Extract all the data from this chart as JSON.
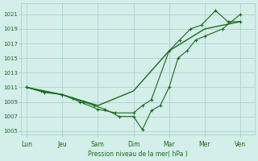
{
  "xlabel": "Pression niveau de la mer( hPa )",
  "ylim": [
    1004.5,
    1022.5
  ],
  "yticks": [
    1005,
    1007,
    1009,
    1011,
    1013,
    1015,
    1017,
    1019,
    1021
  ],
  "x_labels": [
    "Lun",
    "Jeu",
    "Sam",
    "Dim",
    "Mar",
    "Mer",
    "Ven"
  ],
  "x_positions": [
    0,
    1,
    2,
    3,
    4,
    5,
    6
  ],
  "xlim": [
    -0.15,
    6.4
  ],
  "line_color": "#1a6b1a",
  "background_color": "#d4eeea",
  "grid_color": "#a8ccc8",
  "line1_x": [
    0,
    0.4,
    1.0,
    1.3,
    1.6,
    1.9,
    2.2,
    2.6,
    3.0,
    3.25,
    3.5,
    3.75,
    4.0,
    4.25,
    4.5,
    4.75,
    5.0,
    5.5,
    6.0
  ],
  "line1_y": [
    1011,
    1010.5,
    1010,
    1009.5,
    1009,
    1008.5,
    1008,
    1007,
    1007,
    1005.2,
    1007.8,
    1008.5,
    1011,
    1015,
    1016,
    1017.5,
    1018,
    1019,
    1021
  ],
  "line2_x": [
    0,
    0.5,
    1.0,
    1.5,
    2.0,
    2.5,
    3.0,
    3.25,
    3.5,
    4.0,
    4.3,
    4.6,
    4.9,
    5.3,
    5.65,
    6.0
  ],
  "line2_y": [
    1011,
    1010.3,
    1010,
    1009,
    1008,
    1007.5,
    1007.5,
    1008.5,
    1009.3,
    1016,
    1017.5,
    1019,
    1019.5,
    1021.5,
    1020,
    1020
  ],
  "line3_x": [
    0,
    1.0,
    2.0,
    3.0,
    4.0,
    5.0,
    6.0
  ],
  "line3_y": [
    1011,
    1010,
    1008.5,
    1010.5,
    1016,
    1019,
    1020
  ]
}
